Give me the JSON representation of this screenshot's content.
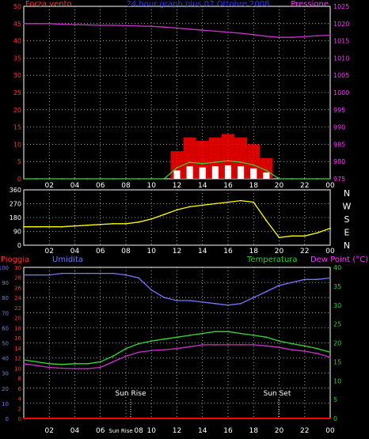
{
  "panel_top": {
    "left_label": "Forza vento",
    "center_label": "24 hour graph plus 07 Ottobre 2008",
    "right_label": "Pressione",
    "left_ticks": [
      "50",
      "45",
      "40",
      "35",
      "30",
      "25",
      "20",
      "15",
      "10",
      "5",
      "0"
    ],
    "right_ticks": [
      "1025",
      "1020",
      "1015",
      "1010",
      "1005",
      "1000",
      "995",
      "990",
      "985",
      "980",
      "975"
    ],
    "x_ticks": [
      "02",
      "04",
      "06",
      "08",
      "10",
      "12",
      "14",
      "16",
      "18",
      "20",
      "22",
      "00"
    ]
  },
  "panel_mid": {
    "left_ticks": [
      "360",
      "270",
      "180",
      "90",
      "0"
    ],
    "right_labels": [
      "N",
      "W",
      "S",
      "E",
      "N"
    ],
    "x_ticks": [
      "02",
      "04",
      "06",
      "08",
      "10",
      "12",
      "14",
      "16",
      "18",
      "20",
      "22",
      "00"
    ]
  },
  "panel_bottom": {
    "label_rain": "Pioggia",
    "label_humidity": "Umidita",
    "label_temp": "Temperatura",
    "label_dew": "Dew Point (°C)",
    "rain_ticks": [
      "100",
      "90",
      "80",
      "70",
      "60",
      "50",
      "40",
      "30",
      "20",
      "10",
      "0"
    ],
    "hum_ticks": [
      "30",
      "28",
      "26",
      "24",
      "22",
      "20",
      "18",
      "16",
      "14",
      "12",
      "10",
      "8",
      "6",
      "4",
      "2",
      "0"
    ],
    "temp_ticks": [
      "40",
      "35",
      "30",
      "25",
      "20",
      "15",
      "10",
      "5",
      "0"
    ],
    "x_ticks": [
      "02",
      "04",
      "06",
      "Sun Rise",
      "08",
      "10",
      "12",
      "14",
      "16",
      "18",
      "20",
      "22",
      "00"
    ],
    "sun_rise": "Sun Rise",
    "sun_set": "Sun Set"
  },
  "colors": {
    "wind": "#ff0000",
    "gust_fill": "#ffffff",
    "wind_avg": "#33dd33",
    "pressure": "#cc33cc",
    "direction": "#ffff00",
    "humidity": "#7777ff",
    "temperature": "#33dd33",
    "dew_point": "#cc33cc",
    "rain": "#ff0000",
    "axis_red": "#ff3333",
    "axis_magenta": "#ff33ff",
    "axis_blue": "#7777ff",
    "axis_green": "#33cc33",
    "title_blue": "#3333ff"
  },
  "chart_data": [
    {
      "type": "line",
      "panel": "wind_pressure",
      "x_hours": [
        0,
        1,
        2,
        3,
        4,
        5,
        6,
        7,
        8,
        9,
        10,
        11,
        12,
        13,
        14,
        15,
        16,
        17,
        18,
        19,
        20,
        21,
        22,
        23,
        24
      ],
      "series": [
        {
          "name": "Pressione",
          "axis": "right",
          "values": [
            1020,
            1020,
            1020,
            1019.8,
            1019.7,
            1019.6,
            1019.5,
            1019.5,
            1019.4,
            1019.3,
            1019.2,
            1019,
            1018.7,
            1018.4,
            1018.1,
            1017.8,
            1017.5,
            1017.2,
            1016.8,
            1016.3,
            1016,
            1016,
            1016.2,
            1016.5,
            1016.6
          ]
        },
        {
          "name": "Forza vento",
          "axis": "left",
          "values": [
            0,
            0,
            0,
            0,
            0,
            0,
            0,
            0,
            0,
            0,
            0,
            0,
            8,
            12,
            11,
            12,
            13,
            12,
            10,
            6,
            0,
            0,
            0,
            0,
            0
          ]
        }
      ],
      "ylim_left": [
        0,
        50
      ],
      "ylim_right": [
        975,
        1025
      ]
    },
    {
      "type": "scatter",
      "panel": "wind_direction",
      "ylim": [
        0,
        360
      ],
      "x_hours": [
        0,
        1,
        2,
        3,
        4,
        5,
        6,
        7,
        8,
        9,
        10,
        11,
        12,
        13,
        14,
        15,
        16,
        17,
        18,
        19,
        20,
        21,
        22,
        23,
        24
      ],
      "values": [
        120,
        120,
        120,
        120,
        125,
        130,
        135,
        140,
        140,
        150,
        170,
        200,
        230,
        250,
        260,
        270,
        280,
        290,
        280,
        160,
        50,
        60,
        60,
        80,
        110
      ]
    },
    {
      "type": "line",
      "panel": "temp_humidity",
      "x_hours": [
        0,
        1,
        2,
        3,
        4,
        5,
        6,
        7,
        8,
        9,
        10,
        11,
        12,
        13,
        14,
        15,
        16,
        17,
        18,
        19,
        20,
        21,
        22,
        23,
        24
      ],
      "series": [
        {
          "name": "Umidita",
          "axis": "left",
          "values": [
            95,
            95,
            95,
            96,
            96,
            96,
            96,
            96,
            95,
            93,
            85,
            80,
            78,
            78,
            77,
            76,
            75,
            76,
            80,
            84,
            88,
            90,
            92,
            92,
            93
          ]
        },
        {
          "name": "Temperatura",
          "axis": "right",
          "values": [
            15.5,
            15,
            14.5,
            14.3,
            14.5,
            14.5,
            15,
            16.5,
            18.5,
            19.8,
            20.5,
            21,
            21.5,
            22,
            22.5,
            23,
            23,
            22.5,
            22,
            21.5,
            20.5,
            19.8,
            19.2,
            18.5,
            17.5
          ]
        },
        {
          "name": "Dew Point",
          "axis": "right",
          "values": [
            14.5,
            14,
            13.5,
            13.3,
            13.2,
            13.2,
            13.5,
            15,
            16.5,
            17.5,
            18,
            18.2,
            18.5,
            19,
            19.5,
            19.5,
            19.5,
            19.5,
            19.5,
            19.2,
            18.8,
            18.2,
            17.8,
            17.2,
            16.2
          ]
        },
        {
          "name": "Pioggia",
          "axis": "left",
          "values": [
            0,
            0,
            0,
            0,
            0,
            0,
            0,
            0,
            0,
            0,
            0,
            0,
            0,
            0,
            0,
            0,
            0,
            0,
            0,
            0,
            0,
            0,
            0,
            0,
            0
          ]
        }
      ],
      "ylim_left": [
        0,
        100
      ],
      "ylim_right": [
        0,
        40
      ]
    }
  ]
}
